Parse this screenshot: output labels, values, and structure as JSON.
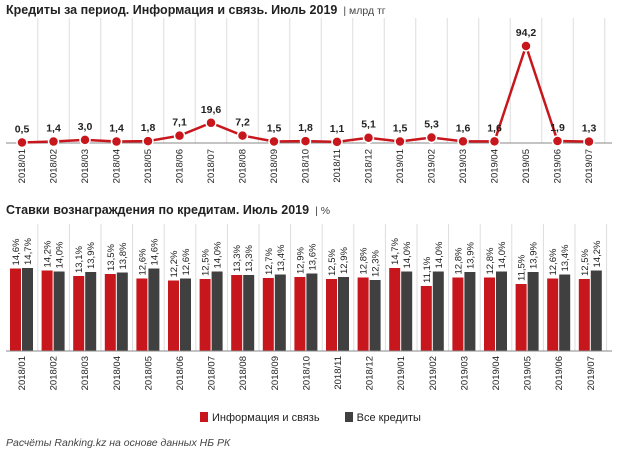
{
  "titles": {
    "chart1": "Кредиты за период. Информация и связь. Июль 2019",
    "chart1_unit": "| млрд тг",
    "chart2": "Ставки вознаграждения по кредитам. Июль 2019",
    "chart2_unit": "| %"
  },
  "source": "Расчёты Ranking.kz на основе данных НБ РК",
  "colors": {
    "red": "#c8161d",
    "dark": "#404040",
    "grid": "#dddddd"
  },
  "chart_data": [
    {
      "type": "line",
      "categories": [
        "2018/01",
        "2018/02",
        "2018/03",
        "2018/04",
        "2018/05",
        "2018/06",
        "2018/07",
        "2018/08",
        "2018/09",
        "2018/10",
        "2018/11",
        "2018/12",
        "2019/01",
        "2019/02",
        "2019/03",
        "2019/04",
        "2019/05",
        "2019/06",
        "2019/07"
      ],
      "series": [
        {
          "values": [
            0.5,
            1.4,
            3.0,
            1.4,
            1.8,
            7.1,
            19.6,
            7.2,
            1.5,
            1.8,
            1.1,
            5.1,
            1.5,
            5.3,
            1.6,
            1.6,
            94.2,
            1.9,
            1.3
          ],
          "labels": [
            "0,5",
            "1,4",
            "3,0",
            "1,4",
            "1,8",
            "7,1",
            "19,6",
            "7,2",
            "1,5",
            "1,8",
            "1,1",
            "5,1",
            "1,5",
            "5,3",
            "1,6",
            "1,6",
            "94,2",
            "1,9",
            "1,3"
          ]
        }
      ],
      "ylim": [
        0,
        100
      ],
      "grid": "vertical"
    },
    {
      "type": "bar",
      "categories": [
        "2018/01",
        "2018/02",
        "2018/03",
        "2018/04",
        "2018/05",
        "2018/06",
        "2018/07",
        "2018/08",
        "2018/09",
        "2018/10",
        "2018/11",
        "2018/12",
        "2019/01",
        "2019/02",
        "2019/03",
        "2019/04",
        "2019/05",
        "2019/06",
        "2019/07"
      ],
      "series": [
        {
          "name": "Информация и связь",
          "values": [
            14.6,
            14.2,
            13.1,
            13.5,
            12.6,
            12.2,
            12.5,
            13.3,
            12.7,
            12.9,
            12.5,
            12.8,
            14.7,
            11.1,
            12.8,
            12.8,
            11.5,
            12.6,
            12.5
          ],
          "labels": [
            "14,6%",
            "14,2%",
            "13,1%",
            "13,5%",
            "12,6%",
            "12,2%",
            "12,5%",
            "13,3%",
            "12,7%",
            "12,9%",
            "12,5%",
            "12,8%",
            "14,7%",
            "11,1%",
            "12,8%",
            "12,8%",
            "11,5%",
            "12,6%",
            "12,5%"
          ]
        },
        {
          "name": "Все кредиты",
          "values": [
            14.7,
            14.0,
            13.9,
            13.8,
            14.6,
            12.6,
            14.0,
            13.3,
            13.4,
            13.6,
            12.9,
            12.3,
            14.0,
            14.0,
            13.9,
            14.0,
            13.9,
            13.4,
            14.2
          ],
          "labels": [
            "14,7%",
            "14,0%",
            "13,9%",
            "13,8%",
            "14,6%",
            "12,6%",
            "14,0%",
            "13,3%",
            "13,4%",
            "13,6%",
            "12,9%",
            "12,3%",
            "14,0%",
            "14,0%",
            "13,9%",
            "14,0%",
            "13,9%",
            "13,4%",
            "14,2%"
          ]
        }
      ],
      "legend": "bottom"
    }
  ]
}
